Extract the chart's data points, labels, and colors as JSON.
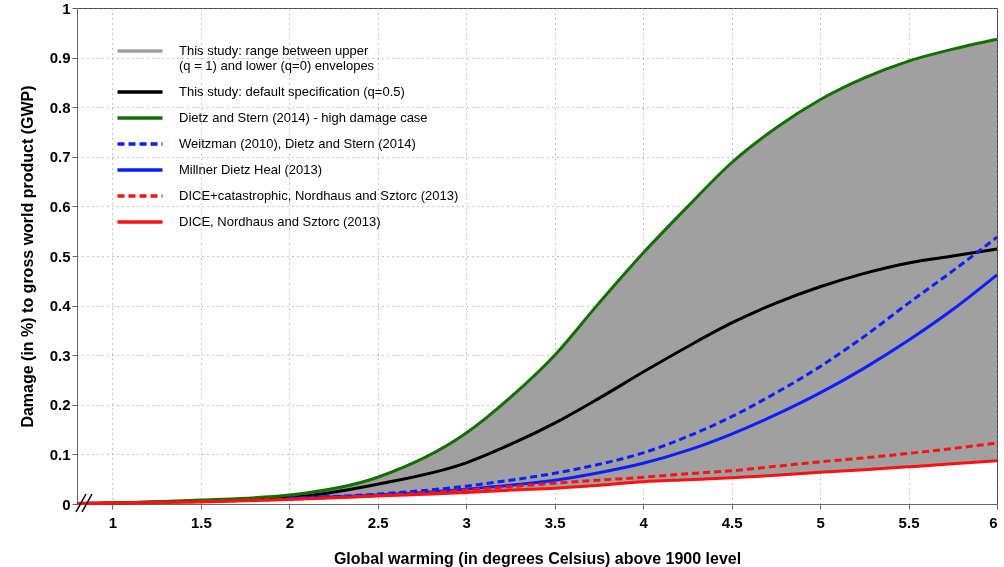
{
  "chart_data": {
    "type": "line",
    "xlabel": "Global warming (in degrees Celsius) above 1900 level",
    "ylabel": "Damage (in %) to gross world product (GWP)",
    "annotations": [
      "This study: range between upper\n(q = 1) and lower (q=0) envelopes"
    ],
    "x": [
      0.8,
      1,
      1.5,
      2,
      2.5,
      3,
      3.25,
      3.5,
      3.75,
      4,
      4.25,
      4.5,
      4.75,
      5,
      5.25,
      5.5,
      5.75,
      6
    ],
    "xlim": [
      0.8,
      6
    ],
    "xticks": [
      1,
      1.5,
      2,
      2.5,
      3,
      3.5,
      4,
      4.5,
      5,
      5.5,
      6
    ],
    "ylim": [
      0,
      1
    ],
    "yticks": [
      0,
      0.1,
      0.2,
      0.3,
      0.4,
      0.5,
      0.6,
      0.7,
      0.8,
      0.9,
      1
    ],
    "grid": true,
    "legend": "top left",
    "series": [
      {
        "name": "This study: default specification (q=0.5)",
        "color": "#000000",
        "line_style": "solid",
        "values": [
          0.001,
          0.002,
          0.006,
          0.013,
          0.04,
          0.083,
          0.12,
          0.163,
          0.213,
          0.266,
          0.317,
          0.365,
          0.405,
          0.438,
          0.465,
          0.486,
          0.5,
          0.514
        ],
        "lower": [
          0.001,
          0.002,
          0.004,
          0.009,
          0.016,
          0.023,
          0.028,
          0.032,
          0.038,
          0.045,
          0.049,
          0.053,
          0.058,
          0.064,
          0.069,
          0.075,
          0.081,
          0.087
        ],
        "upper": [
          0.001,
          0.002,
          0.008,
          0.018,
          0.054,
          0.143,
          0.215,
          0.3,
          0.405,
          0.506,
          0.599,
          0.688,
          0.758,
          0.815,
          0.859,
          0.893,
          0.917,
          0.937
        ]
      },
      {
        "name": "Dietz and Stern (2014) - high damage case",
        "color": "#117000",
        "line_style": "solid",
        "values": [
          0.001,
          0.002,
          0.008,
          0.018,
          0.054,
          0.143,
          0.215,
          0.3,
          0.405,
          0.506,
          0.599,
          0.688,
          0.758,
          0.815,
          0.859,
          0.893,
          0.917,
          0.937
        ]
      },
      {
        "name": "Weitzman (2010), Dietz and Stern (2014)",
        "color": "#0a1eff",
        "line_style": "dashed",
        "values": [
          null,
          null,
          null,
          0.012,
          0.02,
          0.036,
          0.048,
          0.062,
          0.08,
          0.103,
          0.136,
          0.176,
          0.224,
          0.277,
          0.338,
          0.405,
          0.47,
          0.538
        ]
      },
      {
        "name": "Millner Dietz Heal (2013)",
        "color": "#0a1eff",
        "line_style": "solid",
        "values": [
          null,
          null,
          null,
          0.011,
          0.018,
          0.03,
          0.038,
          0.048,
          0.063,
          0.082,
          0.108,
          0.141,
          0.18,
          0.224,
          0.274,
          0.33,
          0.392,
          0.462
        ]
      },
      {
        "name": "DICE+catastrophic, Nordhaus and Sztorc (2013)",
        "color": "#ff1010",
        "line_style": "dashed",
        "values": [
          0.001,
          0.002,
          0.005,
          0.01,
          0.017,
          0.028,
          0.035,
          0.042,
          0.048,
          0.054,
          0.061,
          0.067,
          0.076,
          0.085,
          0.093,
          0.102,
          0.112,
          0.123
        ]
      },
      {
        "name": "DICE, Nordhaus and Sztorc (2013)",
        "color": "#ff1010",
        "line_style": "solid",
        "values": [
          0.001,
          0.002,
          0.004,
          0.009,
          0.016,
          0.023,
          0.028,
          0.032,
          0.038,
          0.045,
          0.049,
          0.053,
          0.058,
          0.064,
          0.069,
          0.075,
          0.081,
          0.087
        ]
      }
    ]
  }
}
